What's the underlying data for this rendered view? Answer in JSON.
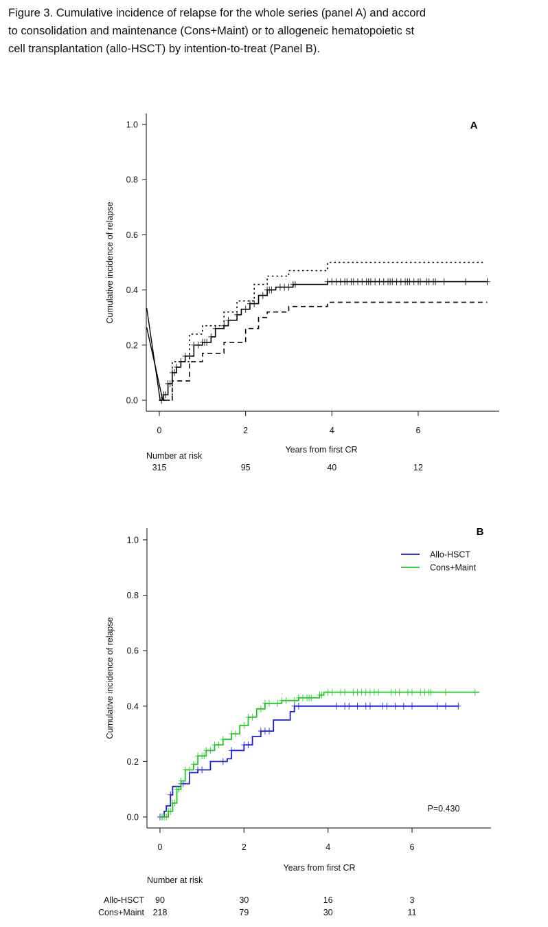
{
  "caption": {
    "lines": [
      "Figure 3. Cumulative incidence of relapse for the whole series (panel A) and accord",
      "to consolidation and maintenance (Cons+Maint) or to allogeneic hematopoietic st",
      "cell transplantation (allo-HSCT) by intention-to-treat (Panel B)."
    ]
  },
  "chart_data": [
    {
      "type": "line",
      "panel_label": "A",
      "title": "",
      "xlabel": "Years from first CR",
      "ylabel": "Cumulative incidence of relapse",
      "xlim": [
        -0.3,
        7.8
      ],
      "ylim": [
        0,
        1.0
      ],
      "x_ticks": [
        "0",
        "2",
        "4",
        "6"
      ],
      "y_ticks": [
        "0.0",
        "0.2",
        "0.4",
        "0.6",
        "0.8",
        "1.0"
      ],
      "grid": false,
      "series": [
        {
          "name": "Cumulative incidence",
          "style": "solid",
          "color": "#000000",
          "x": [
            0,
            0.1,
            0.2,
            0.3,
            0.4,
            0.5,
            0.6,
            0.8,
            1.0,
            1.2,
            1.3,
            1.5,
            1.6,
            1.8,
            1.9,
            2.1,
            2.3,
            2.5,
            2.7,
            3.1,
            3.9,
            7.6
          ],
          "y": [
            0,
            0.02,
            0.06,
            0.1,
            0.12,
            0.14,
            0.16,
            0.2,
            0.21,
            0.23,
            0.26,
            0.27,
            0.29,
            0.31,
            0.33,
            0.35,
            0.38,
            0.4,
            0.41,
            0.42,
            0.43,
            0.43
          ]
        },
        {
          "name": "Upper 95% CI",
          "style": "dotted",
          "color": "#000000",
          "x": [
            0,
            0.3,
            0.7,
            1.0,
            1.5,
            1.8,
            2.2,
            2.5,
            3.0,
            3.9,
            7.5
          ],
          "y": [
            0,
            0.14,
            0.24,
            0.27,
            0.32,
            0.36,
            0.42,
            0.45,
            0.47,
            0.5,
            0.5
          ]
        },
        {
          "name": "Lower 95% CI",
          "style": "dashed",
          "color": "#000000",
          "x": [
            0.1,
            0.3,
            0.7,
            1.0,
            1.5,
            2.0,
            2.3,
            2.5,
            3.0,
            3.9,
            7.6
          ],
          "y": [
            0,
            0.07,
            0.14,
            0.17,
            0.21,
            0.26,
            0.3,
            0.32,
            0.34,
            0.355,
            0.355
          ]
        }
      ],
      "artifact_lines": [
        {
          "x": [
            -0.3,
            0.02
          ],
          "y": [
            0.334,
            0.0
          ]
        },
        {
          "x": [
            -0.3,
            0.08
          ],
          "y": [
            0.264,
            0.0
          ]
        }
      ],
      "censor_marks_x": [
        0.05,
        0.1,
        0.15,
        0.2,
        0.25,
        0.3,
        0.35,
        0.4,
        0.5,
        0.6,
        0.7,
        0.8,
        0.9,
        1.0,
        1.05,
        1.1,
        1.2,
        1.3,
        1.5,
        1.6,
        1.8,
        2.0,
        2.1,
        2.2,
        2.4,
        2.5,
        2.55,
        2.6,
        2.8,
        2.9,
        3.0,
        3.1,
        3.15,
        3.9,
        4.0,
        4.1,
        4.2,
        4.3,
        4.35,
        4.45,
        4.5,
        4.6,
        4.7,
        4.8,
        4.85,
        4.9,
        5.0,
        5.1,
        5.2,
        5.3,
        5.35,
        5.4,
        5.5,
        5.6,
        5.7,
        5.75,
        5.8,
        5.9,
        6.0,
        6.05,
        6.2,
        6.25,
        6.35,
        6.4,
        6.6,
        7.1,
        7.6
      ],
      "risk_table": {
        "title": "Number at risk",
        "rows": [
          {
            "label": "",
            "values": [
              "315",
              "95",
              "40",
              "12"
            ]
          }
        ],
        "x": [
          0,
          2,
          4,
          6
        ]
      }
    },
    {
      "type": "line",
      "panel_label": "B",
      "title": "",
      "xlabel": "Years from first CR",
      "ylabel": "Cumulative incidence of relapse",
      "xlim": [
        -0.3,
        7.8
      ],
      "ylim": [
        0,
        1.0
      ],
      "x_ticks": [
        "0",
        "2",
        "4",
        "6"
      ],
      "y_ticks": [
        "0.0",
        "0.2",
        "0.4",
        "0.6",
        "0.8",
        "1.0"
      ],
      "grid": false,
      "legend_position": "top-right",
      "annotation": "P=0.430",
      "series": [
        {
          "name": "Allo-HSCT",
          "style": "solid",
          "color": "#1a1adf",
          "x": [
            0,
            0.1,
            0.15,
            0.25,
            0.3,
            0.5,
            0.7,
            0.9,
            1.2,
            1.6,
            1.7,
            2.0,
            2.2,
            2.4,
            2.7,
            3.1,
            3.2,
            7.1
          ],
          "y": [
            0,
            0.02,
            0.04,
            0.08,
            0.11,
            0.12,
            0.16,
            0.17,
            0.2,
            0.21,
            0.24,
            0.26,
            0.29,
            0.31,
            0.35,
            0.38,
            0.4,
            0.4
          ],
          "censor_marks_x": [
            0,
            0.05,
            0.25,
            0.5,
            0.55,
            0.9,
            1.0,
            1.5,
            1.7,
            2.0,
            2.1,
            2.4,
            2.5,
            2.6,
            3.2,
            3.3,
            4.2,
            4.4,
            4.5,
            4.7,
            4.9,
            5.0,
            5.3,
            5.4,
            5.6,
            5.8,
            6.0,
            6.6,
            6.8,
            7.1
          ]
        },
        {
          "name": "Cons+Maint",
          "style": "solid",
          "color": "#1ec81e",
          "x": [
            0,
            0.2,
            0.3,
            0.4,
            0.5,
            0.6,
            0.8,
            0.9,
            1.1,
            1.3,
            1.5,
            1.7,
            1.9,
            2.1,
            2.3,
            2.5,
            2.9,
            3.3,
            3.8,
            3.9,
            7.6
          ],
          "y": [
            0,
            0.02,
            0.05,
            0.1,
            0.13,
            0.17,
            0.19,
            0.22,
            0.24,
            0.26,
            0.28,
            0.3,
            0.33,
            0.36,
            0.39,
            0.41,
            0.42,
            0.43,
            0.44,
            0.45,
            0.45
          ],
          "censor_marks_x": [
            0.05,
            0.1,
            0.15,
            0.2,
            0.25,
            0.3,
            0.35,
            0.4,
            0.45,
            0.5,
            0.6,
            0.7,
            0.8,
            0.9,
            1.0,
            1.05,
            1.1,
            1.2,
            1.3,
            1.4,
            1.5,
            1.7,
            1.8,
            2.0,
            2.1,
            2.2,
            2.4,
            2.5,
            2.6,
            2.8,
            2.9,
            3.0,
            3.2,
            3.3,
            3.4,
            3.5,
            3.55,
            3.6,
            3.8,
            3.85,
            4.0,
            4.1,
            4.3,
            4.4,
            4.6,
            4.7,
            4.8,
            4.9,
            5.0,
            5.1,
            5.2,
            5.5,
            5.6,
            5.7,
            5.9,
            6.0,
            6.2,
            6.3,
            6.4,
            6.45,
            6.8,
            7.5
          ]
        }
      ],
      "risk_table": {
        "title": "Number at risk",
        "rows": [
          {
            "label": "Allo-HSCT",
            "values": [
              "90",
              "30",
              "16",
              "3"
            ]
          },
          {
            "label": "Cons+Maint",
            "values": [
              "218",
              "79",
              "30",
              "11"
            ]
          }
        ],
        "x": [
          0,
          2,
          4,
          6
        ]
      }
    }
  ]
}
